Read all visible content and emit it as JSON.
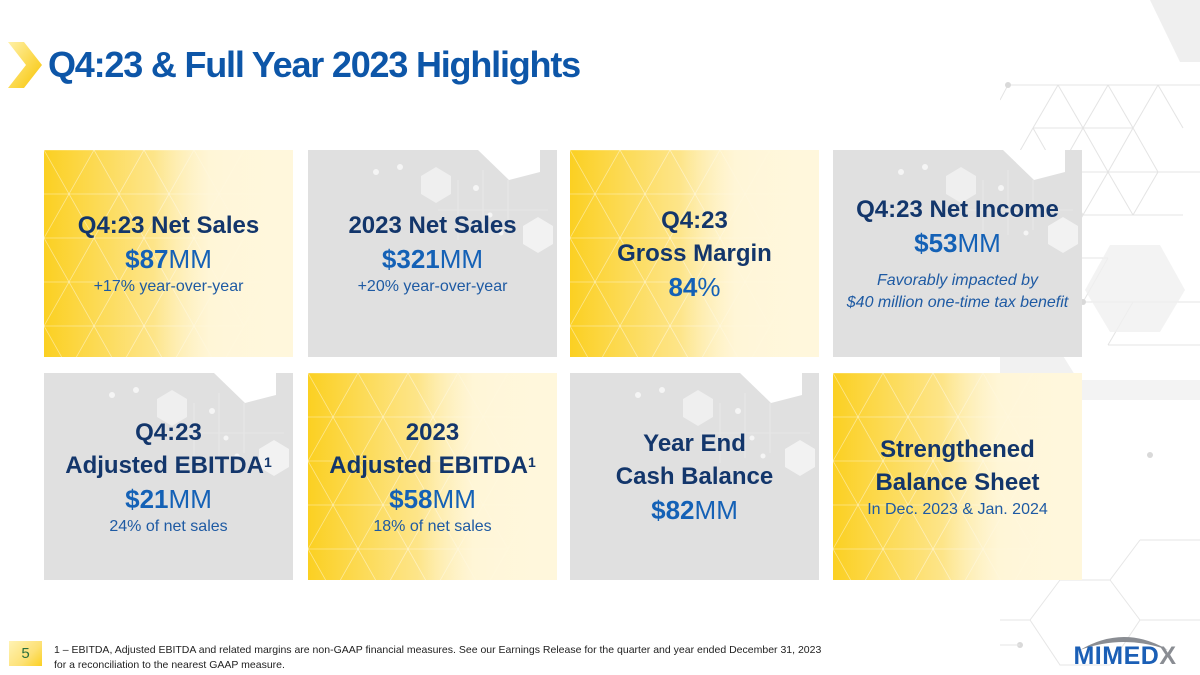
{
  "header": {
    "title": "Q4:23 & Full Year 2023 Highlights"
  },
  "colors": {
    "title_blue": "#0d56a8",
    "card_heading_navy": "#13366b",
    "value_blue": "#1461b6",
    "yellow": "#fbd022",
    "gray_card": "#e0e0e0"
  },
  "cards": [
    {
      "style": "yellow",
      "title_lines": [
        "Q4:23 Net Sales"
      ],
      "value_num": "$87",
      "value_unit": "MM",
      "sub": "+17% year-over-year",
      "note_lines": []
    },
    {
      "style": "gray",
      "title_lines": [
        "2023 Net Sales"
      ],
      "value_num": "$321",
      "value_unit": "MM",
      "sub": "+20% year-over-year",
      "note_lines": []
    },
    {
      "style": "yellow",
      "title_lines": [
        "Q4:23",
        "Gross Margin"
      ],
      "value_num": "84",
      "value_unit": "%",
      "sub": "",
      "note_lines": []
    },
    {
      "style": "gray",
      "title_lines": [
        "Q4:23 Net Income"
      ],
      "value_num": "$53",
      "value_unit": "MM",
      "sub": "",
      "note_lines": [
        "Favorably impacted by",
        "$40 million one-time tax benefit"
      ]
    },
    {
      "style": "gray",
      "title_lines": [
        "Q4:23",
        "Adjusted EBITDA"
      ],
      "title_sup": "1",
      "value_num": "$21",
      "value_unit": "MM",
      "sub": "24% of net sales",
      "note_lines": []
    },
    {
      "style": "yellow",
      "title_lines": [
        "2023",
        "Adjusted EBITDA"
      ],
      "title_sup": "1",
      "value_num": "$58",
      "value_unit": "MM",
      "sub": "18% of net sales",
      "note_lines": []
    },
    {
      "style": "gray",
      "title_lines": [
        "Year End",
        "Cash Balance"
      ],
      "value_num": "$82",
      "value_unit": "MM",
      "sub": "",
      "note_lines": []
    },
    {
      "style": "yellow",
      "title_lines": [
        "Strengthened",
        "Balance Sheet"
      ],
      "value_num": "",
      "value_unit": "",
      "sub": "In Dec. 2023 & Jan. 2024",
      "note_lines": []
    }
  ],
  "footer": {
    "page_number": "5",
    "footnote": "1 – EBITDA, Adjusted EBITDA and related margins are non-GAAP financial measures. See our Earnings Release for the quarter and year ended December 31, 2023 for a reconciliation to the nearest GAAP measure."
  },
  "logo": {
    "text_main": "MIMED",
    "text_x": "X"
  },
  "icons": {
    "title_marker": "chevron-right-icon",
    "logo_arc": "arc-swoosh-icon"
  }
}
